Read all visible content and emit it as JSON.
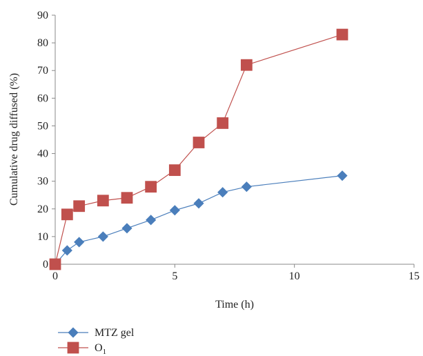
{
  "chart_data": {
    "type": "line",
    "xlabel": "Time (h)",
    "ylabel": "Cumulative drug diffused (%)",
    "xlim": [
      0,
      15
    ],
    "ylim": [
      0,
      90
    ],
    "xticks": [
      0,
      5,
      10,
      15
    ],
    "yticks": [
      0,
      10,
      20,
      30,
      40,
      50,
      60,
      70,
      80,
      90
    ],
    "grid": false,
    "legend_position": "bottom-left",
    "series": [
      {
        "name": "MTZ gel",
        "marker": "diamond",
        "color": "#4a7ebb",
        "x": [
          0,
          0.5,
          1,
          2,
          3,
          4,
          5,
          6,
          7,
          8,
          12
        ],
        "y": [
          0,
          5,
          8,
          10,
          13,
          16,
          19.5,
          22,
          26,
          28,
          32
        ]
      },
      {
        "name": "O",
        "name_subscript": "1",
        "marker": "square",
        "color": "#c0504d",
        "x": [
          0,
          0.5,
          1,
          2,
          3,
          4,
          5,
          6,
          7,
          8,
          12
        ],
        "y": [
          0,
          18,
          21,
          23,
          24,
          28,
          34,
          44,
          51,
          72,
          83
        ]
      }
    ]
  }
}
